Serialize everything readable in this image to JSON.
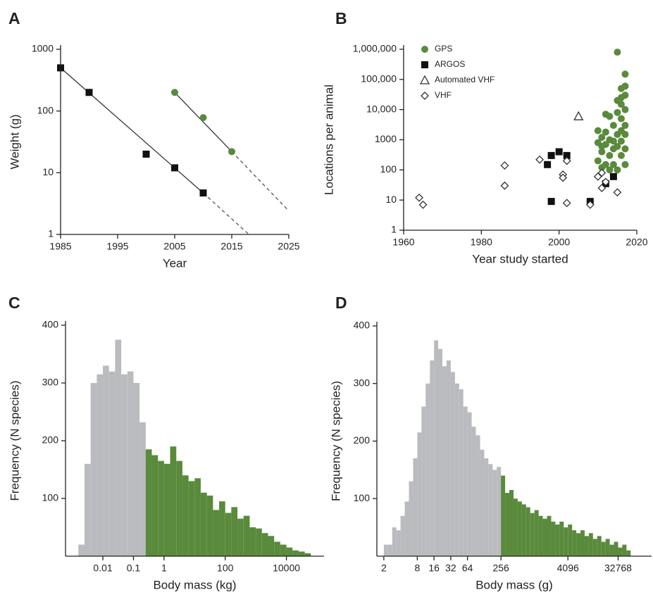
{
  "chart_data": [
    {
      "type": "scatter",
      "panel": "A",
      "xlabel": "Year",
      "ylabel": "Weight (g)",
      "xlim": [
        1985,
        2025
      ],
      "ylim": [
        1,
        1000
      ],
      "ylog": true,
      "xticks": [
        1985,
        1995,
        2005,
        2015,
        2025
      ],
      "yticks": [
        1,
        10,
        100,
        1000
      ],
      "series": [
        {
          "color": "#111111",
          "marker": "square",
          "x": [
            1985,
            1990,
            2000,
            2005,
            2010
          ],
          "y": [
            500,
            200,
            20,
            12,
            4.7
          ]
        },
        {
          "color": "#5a8a3c",
          "marker": "circle",
          "x": [
            2005,
            2010,
            2015
          ],
          "y": [
            200,
            78,
            22
          ]
        }
      ],
      "trend_lines": [
        {
          "color": "#333333",
          "dashed": false,
          "x": [
            1985,
            2010
          ],
          "y": [
            500,
            4.7
          ]
        },
        {
          "color": "#555555",
          "dashed": true,
          "x": [
            2010,
            2018
          ],
          "y": [
            4.7,
            1
          ]
        },
        {
          "color": "#333333",
          "dashed": false,
          "x": [
            2005,
            2015
          ],
          "y": [
            200,
            22
          ]
        },
        {
          "color": "#555555",
          "dashed": true,
          "x": [
            2015,
            2025
          ],
          "y": [
            22,
            2.4
          ]
        }
      ]
    },
    {
      "type": "scatter",
      "panel": "B",
      "xlabel": "Year study started",
      "ylabel": "Locations per animal",
      "xlim": [
        1960,
        2020
      ],
      "ylim": [
        1,
        1000000
      ],
      "ylog": true,
      "legend": "upper left",
      "xticks": [
        1960,
        1980,
        2000,
        2020
      ],
      "yticks": [
        1,
        10,
        100,
        1000,
        {
          "value": 10000,
          "label": "10,000"
        },
        {
          "value": 100000,
          "label": "100,000"
        },
        {
          "value": 1000000,
          "label": "1,000,000"
        }
      ],
      "series": [
        {
          "name": "GPS",
          "color": "#5a8a3c",
          "marker": "circle",
          "x": [
            2015,
            2017,
            2017,
            2016,
            2017,
            2016,
            2015,
            2016,
            2017,
            2015,
            2012,
            2013,
            2016,
            2014,
            2010,
            2012,
            2015,
            2017,
            2011,
            2013,
            2014,
            2016,
            2010,
            2012,
            2015,
            2017,
            2011,
            2013,
            2016,
            2010,
            2012,
            2014,
            2017,
            2011,
            2015,
            2013,
            2014,
            2016,
            2017,
            2011
          ],
          "y": [
            800000,
            150000,
            60000,
            50000,
            30000,
            25000,
            20000,
            15000,
            10000,
            8000,
            7000,
            6000,
            5000,
            3000,
            2000,
            1800,
            1500,
            1500,
            1200,
            1000,
            900,
            900,
            800,
            700,
            600,
            500,
            400,
            300,
            300,
            200,
            150,
            150,
            150,
            120,
            100,
            100,
            500,
            2000,
            3000,
            600
          ]
        },
        {
          "name": "ARGOS",
          "color": "#111111",
          "marker": "square",
          "x": [
            1997,
            1998,
            1998,
            2000,
            2002,
            2008,
            2012,
            2014
          ],
          "y": [
            150,
            300,
            9,
            400,
            300,
            9,
            35,
            60
          ]
        },
        {
          "name": "Automated VHF",
          "color": "#333333",
          "marker": "triangle",
          "x": [
            2005
          ],
          "y": [
            6000
          ]
        },
        {
          "name": "VHF",
          "color": "#333333",
          "marker": "diamond",
          "x": [
            1964,
            1965,
            1986,
            1986,
            1995,
            2002,
            2001,
            2001,
            2002,
            2008,
            2010,
            2011,
            2011,
            2012,
            2015
          ],
          "y": [
            12,
            7,
            140,
            30,
            220,
            200,
            70,
            55,
            8,
            7,
            60,
            80,
            25,
            40,
            18
          ]
        }
      ]
    },
    {
      "type": "histogram",
      "panel": "C",
      "xlabel": "Body mass (kg)",
      "ylabel": "Frequency (N species)",
      "xlim": [
        0.0006,
        170000
      ],
      "xlog": true,
      "ylim": [
        0,
        400
      ],
      "xticks": [
        0.01,
        0.1,
        1,
        100,
        10000
      ],
      "yticks": [
        100,
        200,
        300,
        400
      ],
      "bins": [
        0.00158,
        0.00251,
        0.00398,
        0.00631,
        0.01,
        0.0158,
        0.0251,
        0.0398,
        0.0631,
        0.1,
        0.158,
        0.251,
        0.398,
        0.631,
        1,
        1.58,
        2.51,
        3.98,
        6.31,
        10,
        15.8,
        25.1,
        39.8,
        63.1,
        100,
        158,
        251,
        398,
        631,
        1000,
        1580,
        2510,
        3980,
        6310,
        10000,
        15800,
        25100,
        39800,
        63100
      ],
      "counts": [
        20,
        160,
        300,
        315,
        330,
        320,
        375,
        315,
        320,
        300,
        232,
        185,
        175,
        165,
        160,
        190,
        165,
        140,
        130,
        135,
        110,
        105,
        80,
        95,
        75,
        85,
        65,
        70,
        50,
        48,
        40,
        35,
        25,
        20,
        15,
        10,
        8,
        5
      ],
      "colors": [
        "#b9bbbe",
        "#b9bbbe",
        "#b9bbbe",
        "#b9bbbe",
        "#b9bbbe",
        "#b9bbbe",
        "#b9bbbe",
        "#b9bbbe",
        "#b9bbbe",
        "#b9bbbe",
        "#b9bbbe",
        "#5a8a3c",
        "#5a8a3c",
        "#5a8a3c",
        "#5a8a3c",
        "#5a8a3c",
        "#5a8a3c",
        "#5a8a3c",
        "#5a8a3c",
        "#5a8a3c",
        "#5a8a3c",
        "#5a8a3c",
        "#5a8a3c",
        "#5a8a3c",
        "#5a8a3c",
        "#5a8a3c",
        "#5a8a3c",
        "#5a8a3c",
        "#5a8a3c",
        "#5a8a3c",
        "#5a8a3c",
        "#5a8a3c",
        "#5a8a3c",
        "#5a8a3c",
        "#5a8a3c",
        "#5a8a3c",
        "#5a8a3c",
        "#5a8a3c"
      ]
    },
    {
      "type": "histogram",
      "panel": "D",
      "xlabel": "Body mass (g)",
      "ylabel": "Frequency (N species)",
      "xlim": [
        1.5,
        131072
      ],
      "xlog": true,
      "ylim": [
        0,
        400
      ],
      "xticks": [
        2,
        8,
        16,
        32,
        64,
        256,
        4096,
        32768
      ],
      "yticks": [
        100,
        200,
        300,
        400
      ],
      "bins": [
        2,
        2.38,
        2.83,
        3.36,
        4,
        4.76,
        5.66,
        6.73,
        8,
        9.51,
        11.3,
        13.5,
        16,
        19,
        22.6,
        26.9,
        32,
        38.1,
        45.3,
        53.8,
        64,
        76.1,
        90.5,
        108,
        128,
        152,
        181,
        215,
        256,
        304,
        362,
        431,
        512,
        609,
        724,
        861,
        1024,
        1218,
        1448,
        1722,
        2048,
        2436,
        2896,
        3444,
        4096,
        4871,
        5793,
        6889,
        8192,
        9742,
        11585,
        13777,
        16384,
        19484,
        23170,
        27554,
        32768,
        38968,
        46341,
        55109
      ],
      "counts": [
        20,
        20,
        50,
        45,
        70,
        95,
        130,
        170,
        215,
        260,
        300,
        340,
        375,
        360,
        330,
        340,
        320,
        300,
        290,
        260,
        250,
        225,
        210,
        185,
        170,
        160,
        150,
        155,
        140,
        110,
        115,
        100,
        95,
        90,
        85,
        75,
        80,
        70,
        65,
        70,
        60,
        55,
        60,
        50,
        55,
        45,
        40,
        45,
        35,
        40,
        30,
        35,
        25,
        30,
        20,
        25,
        15,
        20,
        10
      ],
      "colors": [
        "#b9bbbe",
        "#b9bbbe",
        "#b9bbbe",
        "#b9bbbe",
        "#b9bbbe",
        "#b9bbbe",
        "#b9bbbe",
        "#b9bbbe",
        "#b9bbbe",
        "#b9bbbe",
        "#b9bbbe",
        "#b9bbbe",
        "#b9bbbe",
        "#b9bbbe",
        "#b9bbbe",
        "#b9bbbe",
        "#b9bbbe",
        "#b9bbbe",
        "#b9bbbe",
        "#b9bbbe",
        "#b9bbbe",
        "#b9bbbe",
        "#b9bbbe",
        "#b9bbbe",
        "#b9bbbe",
        "#b9bbbe",
        "#b9bbbe",
        "#b9bbbe",
        "#5a8a3c",
        "#5a8a3c",
        "#5a8a3c",
        "#5a8a3c",
        "#5a8a3c",
        "#5a8a3c",
        "#5a8a3c",
        "#5a8a3c",
        "#5a8a3c",
        "#5a8a3c",
        "#5a8a3c",
        "#5a8a3c",
        "#5a8a3c",
        "#5a8a3c",
        "#5a8a3c",
        "#5a8a3c",
        "#5a8a3c",
        "#5a8a3c",
        "#5a8a3c",
        "#5a8a3c",
        "#5a8a3c",
        "#5a8a3c",
        "#5a8a3c",
        "#5a8a3c",
        "#5a8a3c",
        "#5a8a3c",
        "#5a8a3c",
        "#5a8a3c",
        "#5a8a3c",
        "#5a8a3c",
        "#5a8a3c"
      ]
    }
  ]
}
